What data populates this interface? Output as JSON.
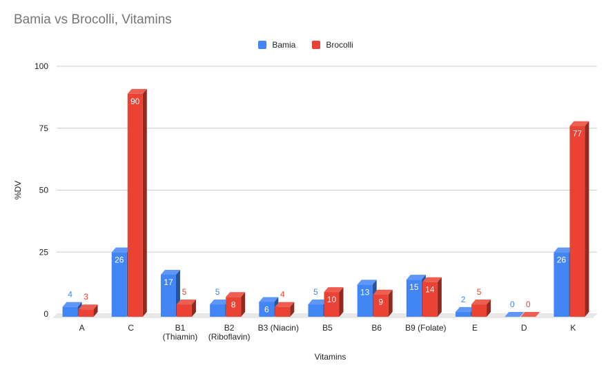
{
  "chart_data": {
    "type": "bar",
    "title": "Bamia vs Brocolli, Vitamins",
    "xlabel": "Vitamins",
    "ylabel": "%DV",
    "ylim": [
      0,
      100
    ],
    "yticks": [
      0,
      25,
      50,
      75,
      100
    ],
    "grid": true,
    "legend": "top-center",
    "categories": [
      "A",
      "C",
      "B1\n(Thiamin)",
      "B2\n(Riboflavin)",
      "B3 (Niacin)",
      "B5",
      "B6",
      "B9 (Folate)",
      "E",
      "D",
      "K"
    ],
    "series": [
      {
        "name": "Bamia",
        "color": "#4285f4",
        "values": [
          4,
          26,
          17,
          5,
          6,
          5,
          13,
          15,
          2,
          0,
          26
        ]
      },
      {
        "name": "Brocolli",
        "color": "#ea4335",
        "values": [
          3,
          90,
          5,
          8,
          4,
          10,
          9,
          14,
          5,
          0,
          77
        ]
      }
    ]
  }
}
